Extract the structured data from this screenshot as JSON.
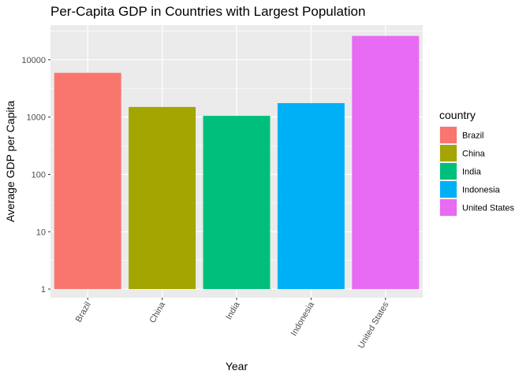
{
  "chart_data": {
    "type": "bar",
    "title": "Per-Capita GDP in Countries with Largest Population",
    "xlabel": "Year",
    "ylabel": "Average GDP per Capita",
    "yscale": "log10",
    "ylim": [
      1,
      40000
    ],
    "yticks": [
      "1",
      "10",
      "100",
      "1000",
      "10000"
    ],
    "ytick_values": [
      1,
      10,
      100,
      1000,
      10000
    ],
    "grid": true,
    "categories": [
      "Brazil",
      "China",
      "India",
      "Indonesia",
      "United States"
    ],
    "values": [
      5900,
      1500,
      1050,
      1750,
      26000
    ],
    "colors": [
      "#F8766D",
      "#A3A500",
      "#00BF7D",
      "#00B0F6",
      "#E76BF3"
    ],
    "legend": {
      "title": "country",
      "placement": "right",
      "entries": [
        "Brazil",
        "China",
        "India",
        "Indonesia",
        "United States"
      ]
    }
  }
}
